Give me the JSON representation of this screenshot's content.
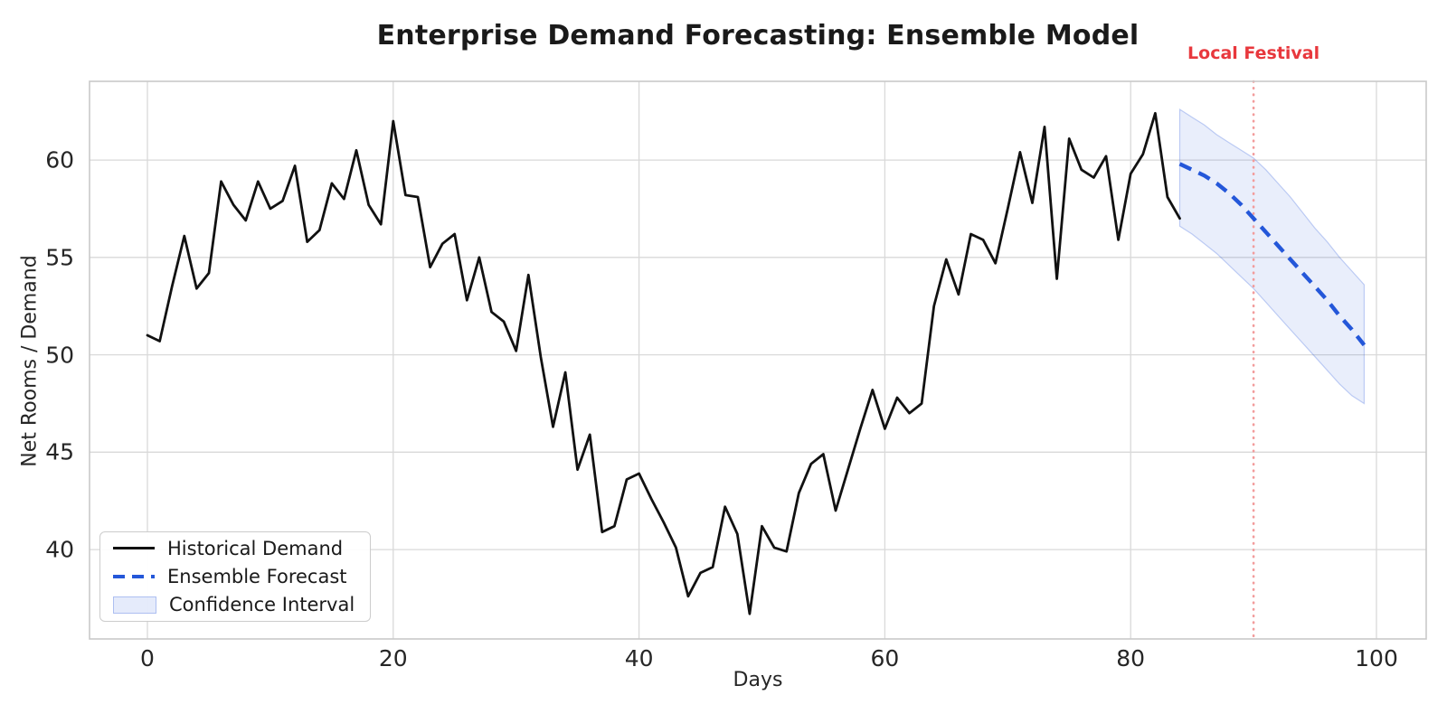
{
  "title": "Enterprise Demand Forecasting: Ensemble Model",
  "annotation": {
    "label": "Local Festival",
    "x": 90
  },
  "axes": {
    "xlabel": "Days",
    "ylabel": "Net Rooms / Demand",
    "x_ticks": [
      0,
      20,
      40,
      60,
      80,
      100
    ],
    "y_ticks": [
      40,
      45,
      50,
      55,
      60
    ],
    "xlim": [
      -4.71,
      104.05
    ],
    "ylim": [
      35.41,
      64.04
    ],
    "grid": true
  },
  "legend": {
    "position": "lower left",
    "items": [
      {
        "label": "Historical Demand",
        "type": "line-solid"
      },
      {
        "label": "Ensemble Forecast",
        "type": "line-dashed"
      },
      {
        "label": "Confidence Interval",
        "type": "patch"
      }
    ]
  },
  "colors": {
    "historical": "#111111",
    "forecast": "#2457d9",
    "band_fill": "#2a5bdb",
    "band_fill_opacity": 0.1,
    "band_edge": "rgba(42,91,219,0.28)",
    "festival_line": "#f29c9c",
    "festival_text": "#e8383d",
    "grid": "#d9d9d9",
    "spine": "#c9c9c9",
    "tick_text": "#262626"
  },
  "chart_data": {
    "type": "line",
    "title": "Enterprise Demand Forecasting: Ensemble Model",
    "xlabel": "Days",
    "ylabel": "Net Rooms / Demand",
    "xlim": [
      -4.71,
      104.05
    ],
    "ylim": [
      35.41,
      64.04
    ],
    "legend_position": "lower left",
    "annotations": [
      {
        "label": "Local Festival",
        "type": "vline-dotted",
        "x": 90
      }
    ],
    "series": [
      {
        "name": "Historical Demand",
        "style": "solid",
        "x_start": 0,
        "x_step": 1,
        "y": [
          51.0,
          50.7,
          53.5,
          56.1,
          53.4,
          54.2,
          58.9,
          57.7,
          56.9,
          58.9,
          57.5,
          57.9,
          59.7,
          55.8,
          56.4,
          58.8,
          58.0,
          60.5,
          57.7,
          56.7,
          62.0,
          58.2,
          58.1,
          54.5,
          55.7,
          56.2,
          52.8,
          55.0,
          52.2,
          51.7,
          50.2,
          54.1,
          49.9,
          46.3,
          49.1,
          44.1,
          45.9,
          40.9,
          41.2,
          43.6,
          43.9,
          42.6,
          41.4,
          40.1,
          37.6,
          38.8,
          39.1,
          42.2,
          40.8,
          36.7,
          41.2,
          40.1,
          39.9,
          42.9,
          44.4,
          44.9,
          42.0,
          44.1,
          46.2,
          48.2,
          46.2,
          47.8,
          47.0,
          47.5,
          52.5,
          54.9,
          53.1,
          56.2,
          55.9,
          54.7,
          57.5,
          60.4,
          57.8,
          61.7,
          53.9,
          61.1,
          59.5,
          59.1,
          60.2,
          55.9,
          59.3,
          60.3,
          62.4,
          58.1,
          57.0
        ]
      },
      {
        "name": "Ensemble Forecast",
        "style": "dashed",
        "x_start": 84,
        "x_step": 1,
        "y": [
          59.8,
          59.5,
          59.2,
          58.8,
          58.3,
          57.7,
          57.0,
          56.3,
          55.6,
          54.9,
          54.2,
          53.5,
          52.8,
          52.0,
          51.3,
          50.5
        ]
      }
    ],
    "band": {
      "name": "Confidence Interval",
      "x_start": 84,
      "x_step": 1,
      "upper": [
        62.6,
        62.2,
        61.8,
        61.3,
        60.9,
        60.5,
        60.1,
        59.5,
        58.8,
        58.1,
        57.3,
        56.5,
        55.8,
        55.0,
        54.3,
        53.6
      ],
      "lower": [
        56.6,
        56.2,
        55.7,
        55.2,
        54.6,
        54.0,
        53.4,
        52.7,
        52.0,
        51.3,
        50.6,
        49.9,
        49.2,
        48.5,
        47.9,
        47.5
      ]
    }
  }
}
